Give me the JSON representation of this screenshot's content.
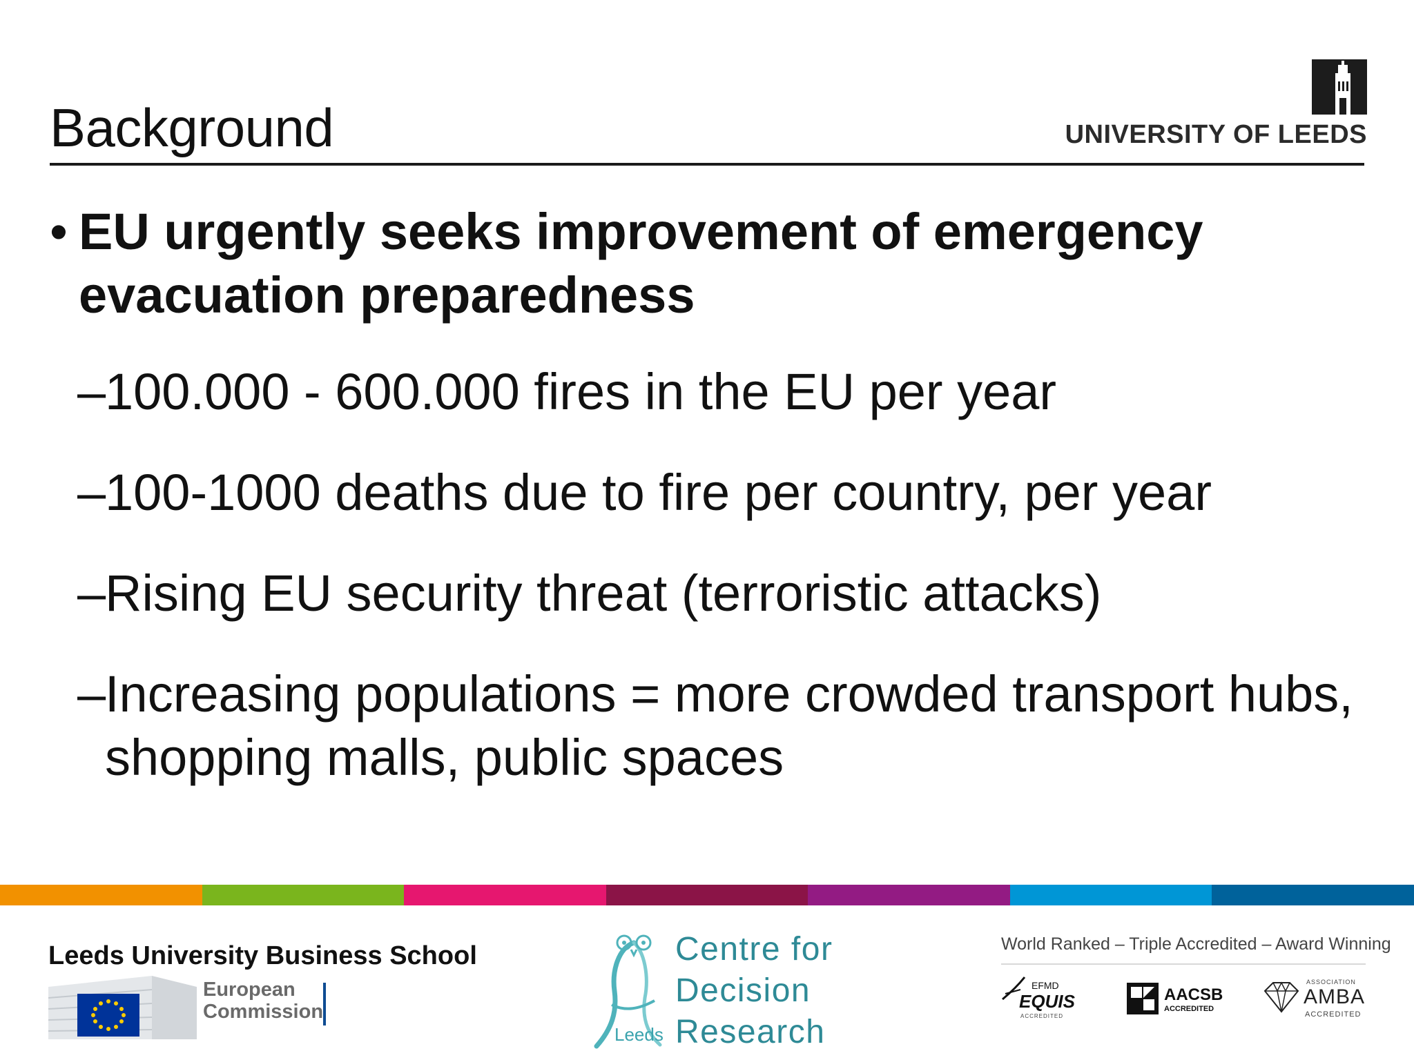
{
  "slide": {
    "title": "Background",
    "university_name": "UNIVERSITY OF LEEDS"
  },
  "bullets": {
    "main": "EU urgently seeks improvement of emergency evacuation preparedness",
    "subs": [
      "100.000 - 600.000 fires in the EU per year",
      "100-1000 deaths due to fire per country, per year",
      "Rising EU security threat (terroristic attacks)",
      "Increasing populations = more crowded transport hubs, shopping malls, public spaces"
    ],
    "dash": "–",
    "dot": "•"
  },
  "colors": {
    "strip": [
      "#f29100",
      "#7ab51d",
      "#e6176f",
      "#8b1447",
      "#931b83",
      "#0096d6",
      "#00629b"
    ]
  },
  "footer": {
    "school": "Leeds University Business School",
    "ec_line1": "European",
    "ec_line2": "Commission",
    "cdr_line1": "Centre for",
    "cdr_line2": "Decision",
    "cdr_line3": "Research",
    "cdr_leeds": "Leeds",
    "accreditation_tagline": "World Ranked – Triple Accredited – Award Winning",
    "equis_top": "EFMD",
    "equis_name": "EQUIS",
    "equis_sub": "ACCREDITED",
    "aacsb_name": "AACSB",
    "aacsb_sub": "ACCREDITED",
    "amba_top": "ASSOCIATION",
    "amba_name": "AMBA",
    "amba_sub": "ACCREDITED"
  }
}
